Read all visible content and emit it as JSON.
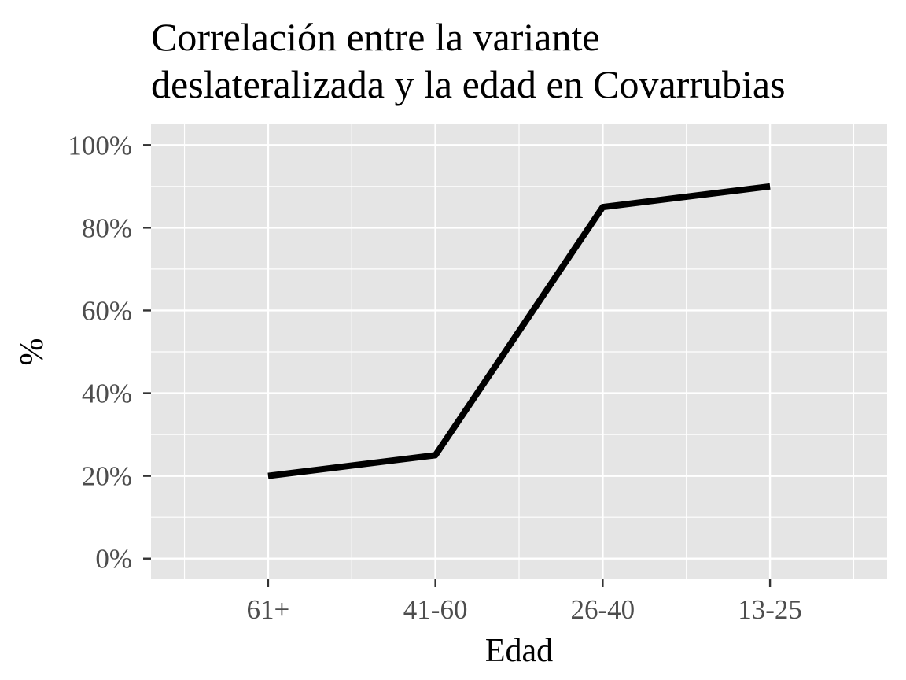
{
  "chart_data": {
    "type": "line",
    "title": "Correlación entre la variante deslateralizada y la edad en Covarrubias",
    "title_lines": [
      "Correlación entre la variante",
      "deslateralizada y la edad en Covarrubias"
    ],
    "xlabel": "Edad",
    "ylabel": "%",
    "categories": [
      "61+",
      "41-60",
      "26-40",
      "13-25"
    ],
    "series": [
      {
        "values": [
          20,
          25,
          85,
          90
        ]
      }
    ],
    "y_ticks": [
      0,
      20,
      40,
      60,
      80,
      100
    ],
    "y_tick_labels": [
      "0%",
      "20%",
      "40%",
      "60%",
      "80%",
      "100%"
    ],
    "ylim": [
      -5,
      105
    ],
    "xlim": [
      0.3,
      4.7
    ],
    "grid": true,
    "line_color": "#000000",
    "panel_background": "#e5e5e5",
    "grid_color": "#ffffff",
    "tick_label_color": "#4d4d4d"
  }
}
